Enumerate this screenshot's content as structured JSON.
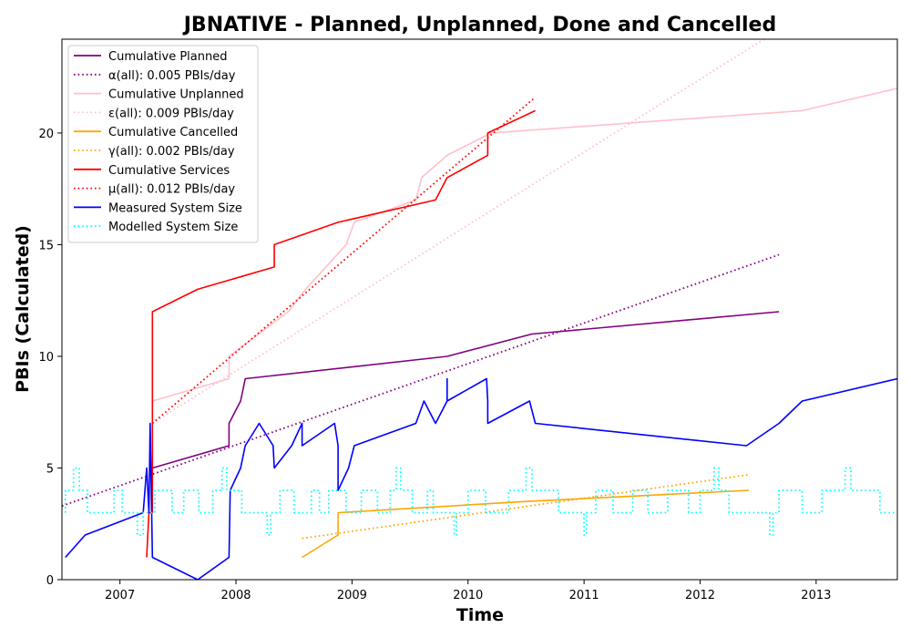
{
  "chart_data": {
    "type": "line",
    "title": "JBNATIVE - Planned, Unplanned, Done  and Cancelled",
    "xlabel": "Time",
    "ylabel": "PBIs (Calculated)",
    "xlim": [
      2006.5,
      2013.7
    ],
    "ylim": [
      0,
      24.2
    ],
    "x_ticks": [
      2007,
      2008,
      2009,
      2010,
      2011,
      2012,
      2013
    ],
    "x_tick_labels": [
      "2007",
      "2008",
      "2009",
      "2010",
      "2011",
      "2012",
      "2013"
    ],
    "y_ticks": [
      0,
      5,
      10,
      15,
      20
    ],
    "y_tick_labels": [
      "0",
      "5",
      "10",
      "15",
      "20"
    ],
    "grid": false,
    "legend_position": "top-left",
    "series": [
      {
        "name": "Cumulative Planned",
        "style": "solid",
        "color": "#800080",
        "points": [
          [
            2007.28,
            5
          ],
          [
            2007.94,
            6
          ],
          [
            2007.94,
            7
          ],
          [
            2008.04,
            8
          ],
          [
            2008.08,
            9
          ],
          [
            2009.82,
            10
          ],
          [
            2010.55,
            11
          ],
          [
            2012.68,
            12
          ]
        ]
      },
      {
        "name": "α(all): 0.005 PBIs/day",
        "style": "dotted",
        "color": "#800080",
        "points": [
          [
            2006.5,
            3.3
          ],
          [
            2012.68,
            14.55
          ]
        ]
      },
      {
        "name": "Cumulative Unplanned",
        "style": "solid",
        "color": "#ffc0cb",
        "points": [
          [
            2007.28,
            7
          ],
          [
            2007.28,
            8
          ],
          [
            2007.94,
            9
          ],
          [
            2007.94,
            10
          ],
          [
            2008.45,
            12
          ],
          [
            2008.6,
            13
          ],
          [
            2008.95,
            15
          ],
          [
            2009.02,
            16
          ],
          [
            2009.55,
            17
          ],
          [
            2009.6,
            18
          ],
          [
            2009.82,
            19
          ],
          [
            2010.2,
            20
          ],
          [
            2012.88,
            21
          ],
          [
            2013.7,
            22
          ]
        ]
      },
      {
        "name": "ε(all): 0.009 PBIs/day",
        "style": "dotted",
        "color": "#ffc0cb",
        "points": [
          [
            2007.28,
            7.0
          ],
          [
            2012.55,
            24.2
          ]
        ]
      },
      {
        "name": "Cumulative Cancelled",
        "style": "solid",
        "color": "#ffa500",
        "points": [
          [
            2008.57,
            1
          ],
          [
            2008.88,
            2
          ],
          [
            2008.88,
            3
          ],
          [
            2010.5,
            3.5
          ],
          [
            2012.42,
            4
          ]
        ]
      },
      {
        "name": "γ(all): 0.002 PBIs/day",
        "style": "dotted",
        "color": "#ffa500",
        "points": [
          [
            2008.57,
            1.85
          ],
          [
            2012.42,
            4.7
          ]
        ]
      },
      {
        "name": "Cumulative Services",
        "style": "solid",
        "color": "#ff0000",
        "points": [
          [
            2007.23,
            1
          ],
          [
            2007.25,
            3
          ],
          [
            2007.28,
            3
          ],
          [
            2007.28,
            12
          ],
          [
            2007.67,
            13
          ],
          [
            2008.33,
            14
          ],
          [
            2008.33,
            15
          ],
          [
            2008.88,
            16
          ],
          [
            2009.72,
            17
          ],
          [
            2009.82,
            18
          ],
          [
            2010.17,
            19
          ],
          [
            2010.17,
            20
          ],
          [
            2010.58,
            21
          ]
        ]
      },
      {
        "name": "μ(all): 0.012 PBIs/day",
        "style": "dotted",
        "color": "#ff0000",
        "points": [
          [
            2007.28,
            7.0
          ],
          [
            2010.58,
            21.6
          ]
        ]
      },
      {
        "name": "Measured System Size",
        "style": "solid",
        "color": "#0000ff",
        "points": [
          [
            2006.53,
            1
          ],
          [
            2006.7,
            2
          ],
          [
            2007.2,
            3
          ],
          [
            2007.23,
            5
          ],
          [
            2007.25,
            3
          ],
          [
            2007.26,
            7
          ],
          [
            2007.27,
            4
          ],
          [
            2007.28,
            1
          ],
          [
            2007.67,
            0
          ],
          [
            2007.94,
            1
          ],
          [
            2007.95,
            4
          ],
          [
            2008.04,
            5
          ],
          [
            2008.08,
            6
          ],
          [
            2008.2,
            7
          ],
          [
            2008.32,
            6
          ],
          [
            2008.33,
            5
          ],
          [
            2008.48,
            6
          ],
          [
            2008.57,
            7
          ],
          [
            2008.57,
            6
          ],
          [
            2008.85,
            7
          ],
          [
            2008.88,
            6
          ],
          [
            2008.88,
            4
          ],
          [
            2008.97,
            5
          ],
          [
            2009.02,
            6
          ],
          [
            2009.55,
            7
          ],
          [
            2009.62,
            8
          ],
          [
            2009.72,
            7
          ],
          [
            2009.82,
            8
          ],
          [
            2009.82,
            9
          ],
          [
            2009.82,
            8
          ],
          [
            2010.16,
            9
          ],
          [
            2010.17,
            8
          ],
          [
            2010.17,
            7
          ],
          [
            2010.53,
            8
          ],
          [
            2010.58,
            7
          ],
          [
            2012.4,
            6
          ],
          [
            2012.68,
            7
          ],
          [
            2012.88,
            8
          ],
          [
            2013.7,
            9
          ]
        ]
      },
      {
        "name": "Modelled System Size",
        "style": "dotted",
        "color": "#00ffff",
        "points": [
          [
            2006.53,
            3
          ],
          [
            2006.53,
            4
          ],
          [
            2006.6,
            4
          ],
          [
            2006.6,
            5
          ],
          [
            2006.65,
            5
          ],
          [
            2006.65,
            4
          ],
          [
            2006.72,
            4
          ],
          [
            2006.72,
            3
          ],
          [
            2006.95,
            3
          ],
          [
            2006.95,
            4
          ],
          [
            2007.02,
            4
          ],
          [
            2007.02,
            3
          ],
          [
            2007.15,
            3
          ],
          [
            2007.15,
            2
          ],
          [
            2007.2,
            2
          ],
          [
            2007.2,
            3
          ],
          [
            2007.3,
            3
          ],
          [
            2007.3,
            4
          ],
          [
            2007.45,
            4
          ],
          [
            2007.45,
            3
          ],
          [
            2007.55,
            3
          ],
          [
            2007.55,
            4
          ],
          [
            2007.68,
            4
          ],
          [
            2007.68,
            3
          ],
          [
            2007.8,
            3
          ],
          [
            2007.8,
            4
          ],
          [
            2007.88,
            4
          ],
          [
            2007.88,
            5
          ],
          [
            2007.92,
            5
          ],
          [
            2007.92,
            4
          ],
          [
            2008.05,
            4
          ],
          [
            2008.05,
            3
          ],
          [
            2008.27,
            3
          ],
          [
            2008.27,
            2
          ],
          [
            2008.3,
            2
          ],
          [
            2008.3,
            3
          ],
          [
            2008.38,
            3
          ],
          [
            2008.38,
            4
          ],
          [
            2008.5,
            4
          ],
          [
            2008.5,
            3
          ],
          [
            2008.65,
            3
          ],
          [
            2008.65,
            4
          ],
          [
            2008.72,
            4
          ],
          [
            2008.72,
            3
          ],
          [
            2008.8,
            3
          ],
          [
            2008.8,
            4
          ],
          [
            2008.95,
            4
          ],
          [
            2008.95,
            3
          ],
          [
            2009.08,
            3
          ],
          [
            2009.08,
            4
          ],
          [
            2009.22,
            4
          ],
          [
            2009.22,
            3
          ],
          [
            2009.33,
            3
          ],
          [
            2009.33,
            4
          ],
          [
            2009.38,
            4
          ],
          [
            2009.38,
            5
          ],
          [
            2009.42,
            5
          ],
          [
            2009.42,
            4
          ],
          [
            2009.52,
            4
          ],
          [
            2009.52,
            3
          ],
          [
            2009.65,
            3
          ],
          [
            2009.65,
            4
          ],
          [
            2009.7,
            4
          ],
          [
            2009.7,
            3
          ],
          [
            2009.88,
            3
          ],
          [
            2009.88,
            2
          ],
          [
            2009.9,
            2
          ],
          [
            2009.9,
            3
          ],
          [
            2010.0,
            3
          ],
          [
            2010.0,
            4
          ],
          [
            2010.15,
            4
          ],
          [
            2010.15,
            3
          ],
          [
            2010.35,
            3
          ],
          [
            2010.35,
            4
          ],
          [
            2010.5,
            4
          ],
          [
            2010.5,
            5
          ],
          [
            2010.55,
            5
          ],
          [
            2010.55,
            4
          ],
          [
            2010.78,
            4
          ],
          [
            2010.78,
            3
          ],
          [
            2011.0,
            3
          ],
          [
            2011.0,
            2
          ],
          [
            2011.02,
            2
          ],
          [
            2011.02,
            3
          ],
          [
            2011.1,
            3
          ],
          [
            2011.1,
            4
          ],
          [
            2011.25,
            4
          ],
          [
            2011.25,
            3
          ],
          [
            2011.42,
            3
          ],
          [
            2011.42,
            4
          ],
          [
            2011.55,
            4
          ],
          [
            2011.55,
            3
          ],
          [
            2011.72,
            3
          ],
          [
            2011.72,
            4
          ],
          [
            2011.9,
            4
          ],
          [
            2011.9,
            3
          ],
          [
            2012.0,
            3
          ],
          [
            2012.0,
            4
          ],
          [
            2012.12,
            4
          ],
          [
            2012.12,
            5
          ],
          [
            2012.16,
            5
          ],
          [
            2012.16,
            4
          ],
          [
            2012.25,
            4
          ],
          [
            2012.25,
            3
          ],
          [
            2012.6,
            3
          ],
          [
            2012.6,
            2
          ],
          [
            2012.63,
            2
          ],
          [
            2012.63,
            3
          ],
          [
            2012.68,
            3
          ],
          [
            2012.68,
            4
          ],
          [
            2012.88,
            4
          ],
          [
            2012.88,
            3
          ],
          [
            2013.05,
            3
          ],
          [
            2013.05,
            4
          ],
          [
            2013.25,
            4
          ],
          [
            2013.25,
            5
          ],
          [
            2013.3,
            5
          ],
          [
            2013.3,
            4
          ],
          [
            2013.55,
            4
          ],
          [
            2013.55,
            3
          ],
          [
            2013.7,
            3
          ]
        ]
      }
    ]
  }
}
